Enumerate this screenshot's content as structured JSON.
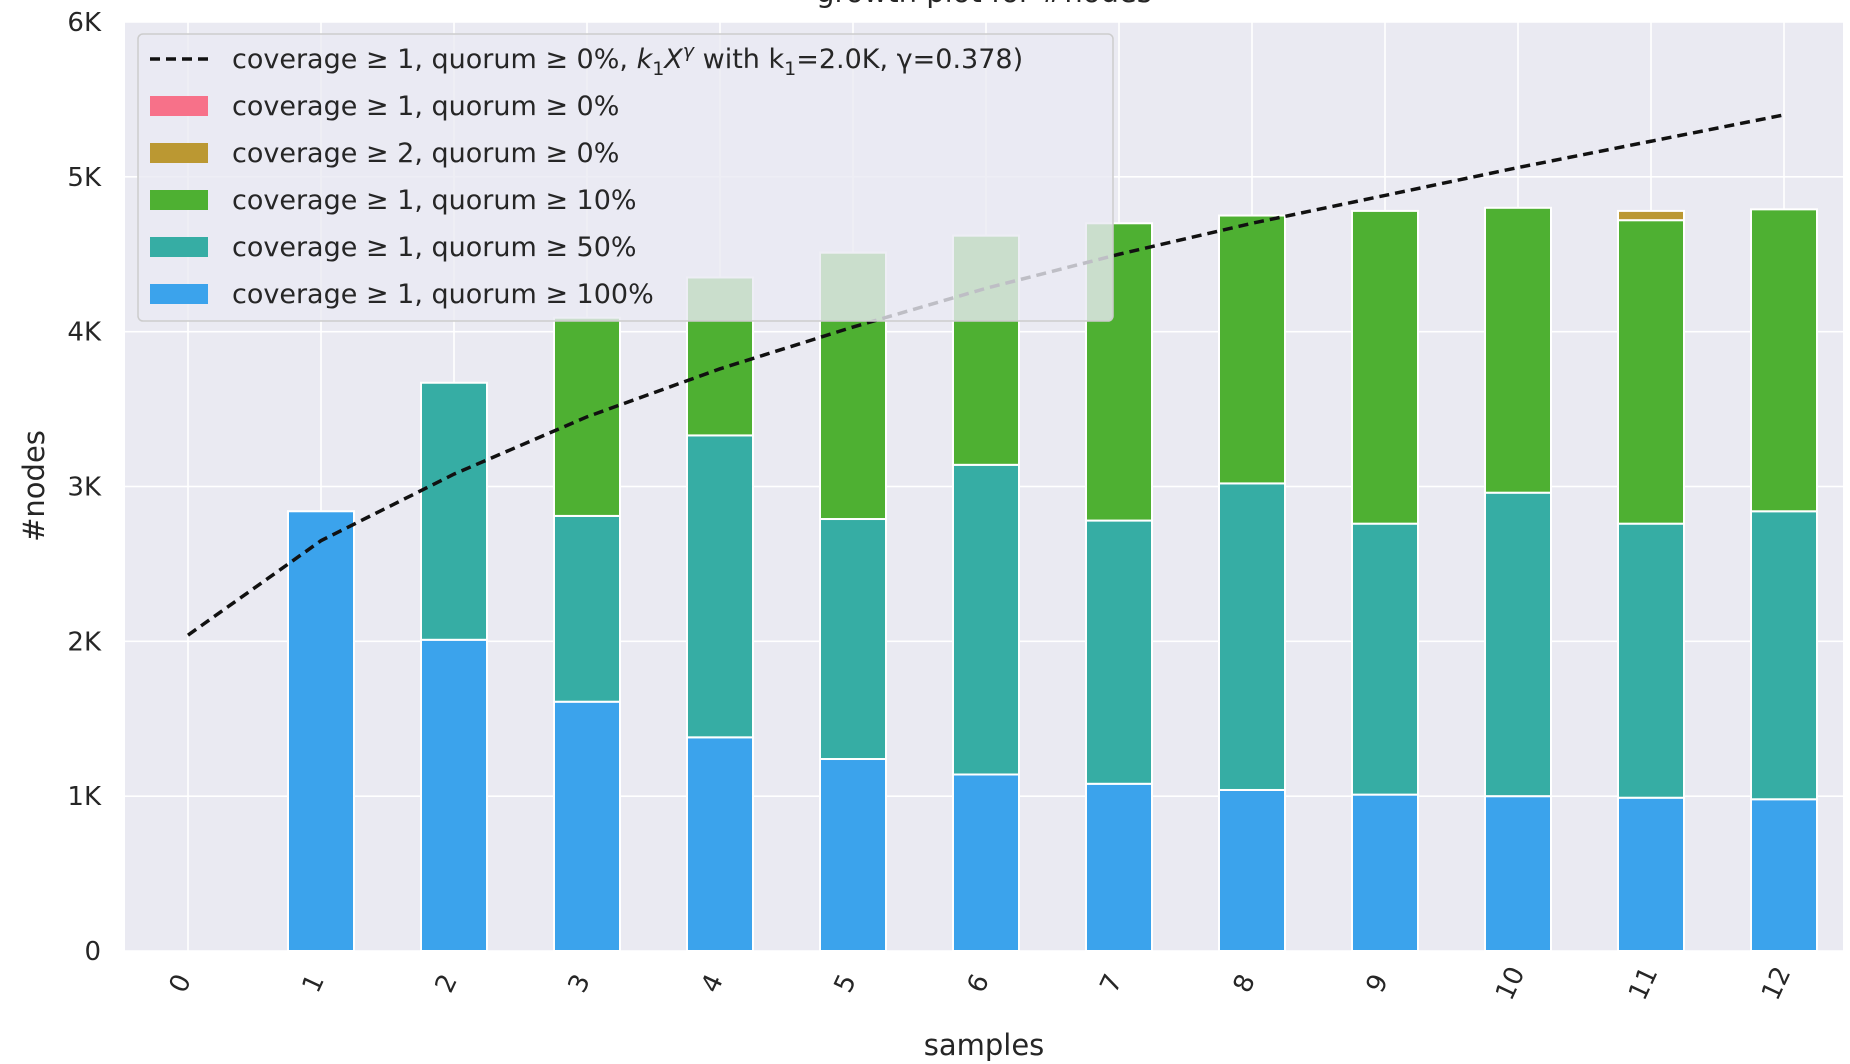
{
  "chart_data": {
    "type": "bar",
    "title": "growth plot for #nodes",
    "xlabel": "samples",
    "ylabel": "#nodes",
    "ylim": [
      0,
      6000
    ],
    "y_ticks": [
      "0",
      "1K",
      "2K",
      "3K",
      "4K",
      "5K",
      "6K"
    ],
    "categories": [
      "0",
      "1",
      "2",
      "3",
      "4",
      "5",
      "6",
      "7",
      "8",
      "9",
      "10",
      "11",
      "12"
    ],
    "grid": true,
    "legend_position": "top-left",
    "series": [
      {
        "name": "coverage ≥ 1, quorum ≥ 100%",
        "color": "#3ba3ec",
        "values": [
          0,
          2840,
          2010,
          1610,
          1380,
          1240,
          1140,
          1080,
          1040,
          1010,
          1000,
          990,
          980
        ]
      },
      {
        "name": "coverage ≥ 1, quorum ≥ 50%",
        "color": "#36ada4",
        "values": [
          0,
          0,
          1660,
          1200,
          1950,
          1550,
          2000,
          1700,
          1980,
          1750,
          1960,
          1770,
          1860
        ]
      },
      {
        "name": "coverage ≥ 1, quorum ≥ 10%",
        "color": "#4eb032",
        "values": [
          0,
          0,
          0,
          1280,
          1020,
          1720,
          1480,
          1920,
          1730,
          2020,
          1840,
          1960,
          1950
        ]
      },
      {
        "name": "coverage ≥ 2, quorum ≥ 0%",
        "color": "#bb9832",
        "values": [
          0,
          0,
          0,
          0,
          0,
          0,
          0,
          0,
          0,
          0,
          0,
          60,
          0
        ]
      },
      {
        "name": "coverage ≥ 1, quorum ≥ 0%",
        "color": "#f77189",
        "values": [
          0,
          0,
          0,
          0,
          0,
          0,
          0,
          0,
          0,
          0,
          0,
          0,
          0
        ]
      }
    ],
    "fit": {
      "label_prefix": "coverage ≥ 1, quorum ≥ 0%, ",
      "label_k": "k",
      "label_sub": "1",
      "label_x": "X",
      "label_sup": "γ",
      "label_suffix": " with k",
      "label_sub2": "1",
      "label_tail": "=2.0K, γ=0.378)",
      "k1": 2040,
      "gamma": 0.378,
      "values": [
        2040,
        2650,
        3080,
        3450,
        3760,
        4030,
        4280,
        4500,
        4700,
        4880,
        5060,
        5230,
        5400
      ],
      "style": "dashed",
      "color": "#111111"
    },
    "legend_order": [
      "coverage ≥ 1, quorum ≥ 0%",
      "coverage ≥ 2, quorum ≥ 0%",
      "coverage ≥ 1, quorum ≥ 10%",
      "coverage ≥ 1, quorum ≥ 50%",
      "coverage ≥ 1, quorum ≥ 100%"
    ]
  },
  "colors": {
    "plot_background": "#eaeaf2",
    "grid": "#ffffff",
    "bar_edge": "#ffffff"
  }
}
